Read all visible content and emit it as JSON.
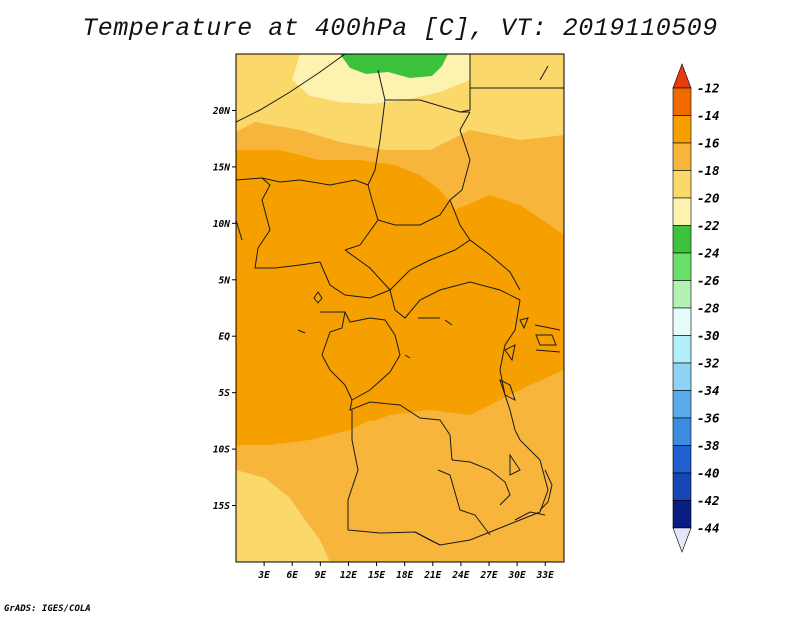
{
  "title": "Temperature at 400hPa [C], VT: 2019110509",
  "footer": "GrADS: IGES/COLA",
  "map": {
    "lon_range": [
      0,
      35
    ],
    "lat_range": [
      -20,
      25
    ],
    "lat_ticks": [
      {
        "lat": 20,
        "label": "20N"
      },
      {
        "lat": 15,
        "label": "15N"
      },
      {
        "lat": 10,
        "label": "10N"
      },
      {
        "lat": 5,
        "label": "5N"
      },
      {
        "lat": 0,
        "label": "EQ"
      },
      {
        "lat": -5,
        "label": "5S"
      },
      {
        "lat": -10,
        "label": "10S"
      },
      {
        "lat": -15,
        "label": "15S"
      }
    ],
    "lon_ticks": [
      {
        "lon": 3,
        "label": "3E"
      },
      {
        "lon": 6,
        "label": "6E"
      },
      {
        "lon": 9,
        "label": "9E"
      },
      {
        "lon": 12,
        "label": "12E"
      },
      {
        "lon": 15,
        "label": "15E"
      },
      {
        "lon": 18,
        "label": "18E"
      },
      {
        "lon": 21,
        "label": "21E"
      },
      {
        "lon": 24,
        "label": "24E"
      },
      {
        "lon": 27,
        "label": "27E"
      },
      {
        "lon": 30,
        "label": "30E"
      },
      {
        "lon": 33,
        "label": "33E"
      }
    ]
  },
  "colorbar": {
    "labels": [
      "-12",
      "-14",
      "-16",
      "-18",
      "-20",
      "-22",
      "-24",
      "-26",
      "-28",
      "-30",
      "-32",
      "-34",
      "-36",
      "-38",
      "-40",
      "-42",
      "-44"
    ],
    "colors": [
      "#e83c0f",
      "#f06a00",
      "#f5a000",
      "#f8b53c",
      "#fbd86a",
      "#fef2b0",
      "#3cc23c",
      "#6bde6b",
      "#b3f2b3",
      "#e6fcfa",
      "#b4eef8",
      "#8ed2f6",
      "#5aaae9",
      "#3c8ce1",
      "#1e5fd2",
      "#1446b4",
      "#0a1e82",
      "#e6e6fa"
    ]
  },
  "regions": {
    "background": "#f8b53c",
    "central": "#f5a000",
    "north": "#fbd86a",
    "north_pale": "#fef2b0",
    "sahara_green": "#3cc23c",
    "south": "#f8b53c",
    "southwest": "#fbd86a"
  }
}
